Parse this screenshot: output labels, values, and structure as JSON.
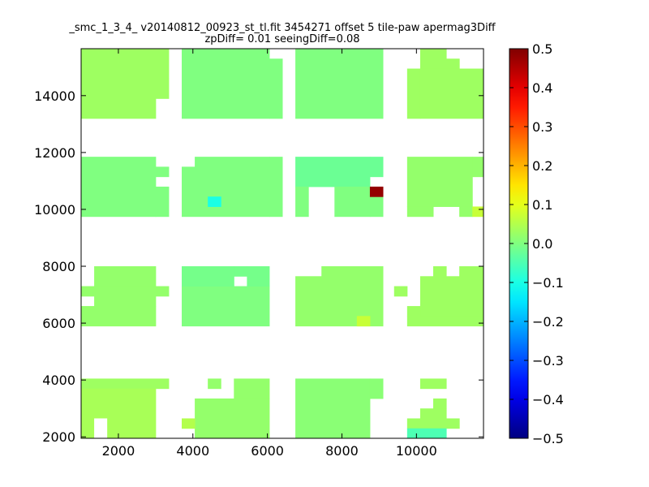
{
  "chart_data": {
    "type": "heatmap",
    "title_line1": "_smc_1_3_4_ v20140812_00923_st_tl.fit 3454271 offset 5 tile-paw apermag3Diff",
    "title_line2": "zpDiff= 0.01 seeingDiff=0.08",
    "xlabel": "",
    "ylabel": "",
    "xlim": [
      1000,
      11800
    ],
    "ylim": [
      1950,
      15650
    ],
    "x_ticks": [
      "2000",
      "4000",
      "6000",
      "8000",
      "10000"
    ],
    "y_ticks": [
      "2000",
      "4000",
      "6000",
      "8000",
      "10000",
      "12000",
      "14000"
    ],
    "colorbar": {
      "vmin": -0.5,
      "vmax": 0.5,
      "ticks": [
        "−0.5",
        "−0.4",
        "−0.3",
        "−0.2",
        "−0.1",
        "0.0",
        "0.1",
        "0.2",
        "0.3",
        "0.4",
        "0.5"
      ],
      "colormap": "jet"
    },
    "cell_size": 350,
    "cells": [
      {
        "x": 1000,
        "y": 14600,
        "w": 2350,
        "h": 1050,
        "value": 0.03
      },
      {
        "x": 1000,
        "y": 13200,
        "w": 2000,
        "h": 1400,
        "value": 0.03
      },
      {
        "x": 3000,
        "y": 13900,
        "w": 350,
        "h": 700,
        "value": 0.03
      },
      {
        "x": 3700,
        "y": 13200,
        "w": 2350,
        "h": 2450,
        "value": 0.0
      },
      {
        "x": 6050,
        "y": 13200,
        "w": 350,
        "h": 2100,
        "value": 0.0
      },
      {
        "x": 6750,
        "y": 13200,
        "w": 2350,
        "h": 2450,
        "value": 0.0
      },
      {
        "x": 10100,
        "y": 15300,
        "w": 700,
        "h": 350,
        "value": 0.03
      },
      {
        "x": 10100,
        "y": 14950,
        "w": 1050,
        "h": 350,
        "value": 0.03
      },
      {
        "x": 9750,
        "y": 14950,
        "w": 350,
        "h": -1750,
        "value": 0.03
      },
      {
        "x": 10100,
        "y": 13200,
        "w": 1700,
        "h": 1750,
        "value": 0.03
      },
      {
        "x": 1000,
        "y": 9750,
        "w": 2000,
        "h": 2100,
        "value": 0.0
      },
      {
        "x": 3000,
        "y": 9750,
        "w": 350,
        "h": 1050,
        "value": 0.0
      },
      {
        "x": 3000,
        "y": 11150,
        "w": 350,
        "h": 350,
        "value": 0.0
      },
      {
        "x": 3700,
        "y": 9750,
        "w": 2350,
        "h": 1750,
        "value": 0.0
      },
      {
        "x": 4050,
        "y": 11500,
        "w": 2000,
        "h": 350,
        "value": 0.0
      },
      {
        "x": 6050,
        "y": 9750,
        "w": 350,
        "h": 2100,
        "value": 0.0
      },
      {
        "x": 6750,
        "y": 10800,
        "w": 2000,
        "h": 1050,
        "value": -0.02
      },
      {
        "x": 8750,
        "y": 11150,
        "w": 350,
        "h": 700,
        "value": -0.02
      },
      {
        "x": 6750,
        "y": 9750,
        "w": 350,
        "h": 1050,
        "value": 0.0
      },
      {
        "x": 7800,
        "y": 9750,
        "w": 950,
        "h": 1050,
        "value": 0.0
      },
      {
        "x": 8750,
        "y": 9750,
        "w": 350,
        "h": 700,
        "value": 0.0
      },
      {
        "x": 9750,
        "y": 10100,
        "w": 1750,
        "h": 1750,
        "value": 0.02
      },
      {
        "x": 9750,
        "y": 9750,
        "w": 700,
        "h": 350,
        "value": 0.02
      },
      {
        "x": 11150,
        "y": 9750,
        "w": 350,
        "h": 350,
        "value": 0.02
      },
      {
        "x": 11500,
        "y": 11150,
        "w": 300,
        "h": 700,
        "value": 0.02
      },
      {
        "x": 11500,
        "y": 9750,
        "w": 300,
        "h": 350,
        "value": 0.07
      },
      {
        "x": 4400,
        "y": 10100,
        "w": 350,
        "h": 350,
        "value": -0.1
      },
      {
        "x": 8750,
        "y": 10450,
        "w": 350,
        "h": 350,
        "value": 0.48
      },
      {
        "x": 1350,
        "y": 7300,
        "w": 1650,
        "h": 700,
        "value": 0.02
      },
      {
        "x": 1000,
        "y": 6950,
        "w": 2350,
        "h": 350,
        "value": 0.02
      },
      {
        "x": 1350,
        "y": 6600,
        "w": 1650,
        "h": 350,
        "value": 0.02
      },
      {
        "x": 1000,
        "y": 5900,
        "w": 2000,
        "h": 700,
        "value": 0.02
      },
      {
        "x": 3700,
        "y": 5900,
        "w": 2350,
        "h": 1400,
        "value": 0.0
      },
      {
        "x": 3700,
        "y": 7300,
        "w": 1400,
        "h": 700,
        "value": -0.01
      },
      {
        "x": 5450,
        "y": 7300,
        "w": 600,
        "h": 700,
        "value": -0.01
      },
      {
        "x": 5100,
        "y": 7650,
        "w": 350,
        "h": 350,
        "value": -0.01
      },
      {
        "x": 6750,
        "y": 5900,
        "w": 2350,
        "h": 1750,
        "value": 0.02
      },
      {
        "x": 7450,
        "y": 7650,
        "w": 1650,
        "h": 350,
        "value": 0.02
      },
      {
        "x": 8400,
        "y": 5900,
        "w": 350,
        "h": 350,
        "value": 0.07
      },
      {
        "x": 9400,
        "y": 6950,
        "w": 350,
        "h": 350,
        "value": 0.03
      },
      {
        "x": 10100,
        "y": 6250,
        "w": 1700,
        "h": 1400,
        "value": 0.03
      },
      {
        "x": 10450,
        "y": 7650,
        "w": 350,
        "h": 350,
        "value": 0.03
      },
      {
        "x": 11150,
        "y": 7650,
        "w": 650,
        "h": 350,
        "value": 0.03
      },
      {
        "x": 9750,
        "y": 5900,
        "w": 2050,
        "h": 350,
        "value": 0.03
      },
      {
        "x": 9750,
        "y": 6250,
        "w": 350,
        "h": 350,
        "value": 0.03
      },
      {
        "x": 1000,
        "y": 3700,
        "w": 2350,
        "h": 350,
        "value": 0.03
      },
      {
        "x": 1000,
        "y": 1950,
        "w": 2000,
        "h": 1750,
        "value": 0.04
      },
      {
        "x": 4400,
        "y": 3700,
        "w": 350,
        "h": 350,
        "value": 0.02
      },
      {
        "x": 4050,
        "y": 1950,
        "w": 2000,
        "h": 1400,
        "value": 0.02
      },
      {
        "x": 3700,
        "y": 2300,
        "w": 350,
        "h": 350,
        "value": 0.05
      },
      {
        "x": 5100,
        "y": 3350,
        "w": 950,
        "h": 700,
        "value": 0.02
      },
      {
        "x": 6750,
        "y": 1950,
        "w": 2000,
        "h": 2100,
        "value": 0.01
      },
      {
        "x": 8750,
        "y": 3350,
        "w": 350,
        "h": 700,
        "value": 0.01
      },
      {
        "x": 10100,
        "y": 3700,
        "w": 700,
        "h": 350,
        "value": 0.03
      },
      {
        "x": 10450,
        "y": 3000,
        "w": 350,
        "h": 350,
        "value": 0.03
      },
      {
        "x": 10100,
        "y": 2650,
        "w": 700,
        "h": 350,
        "value": 0.03
      },
      {
        "x": 9750,
        "y": 2300,
        "w": 1400,
        "h": 350,
        "value": 0.03
      },
      {
        "x": 9750,
        "y": 1950,
        "w": 1050,
        "h": 350,
        "value": -0.05
      }
    ],
    "blank_cells": [
      {
        "x": 1350,
        "y": 1950,
        "w": 350,
        "h": 700
      }
    ]
  }
}
